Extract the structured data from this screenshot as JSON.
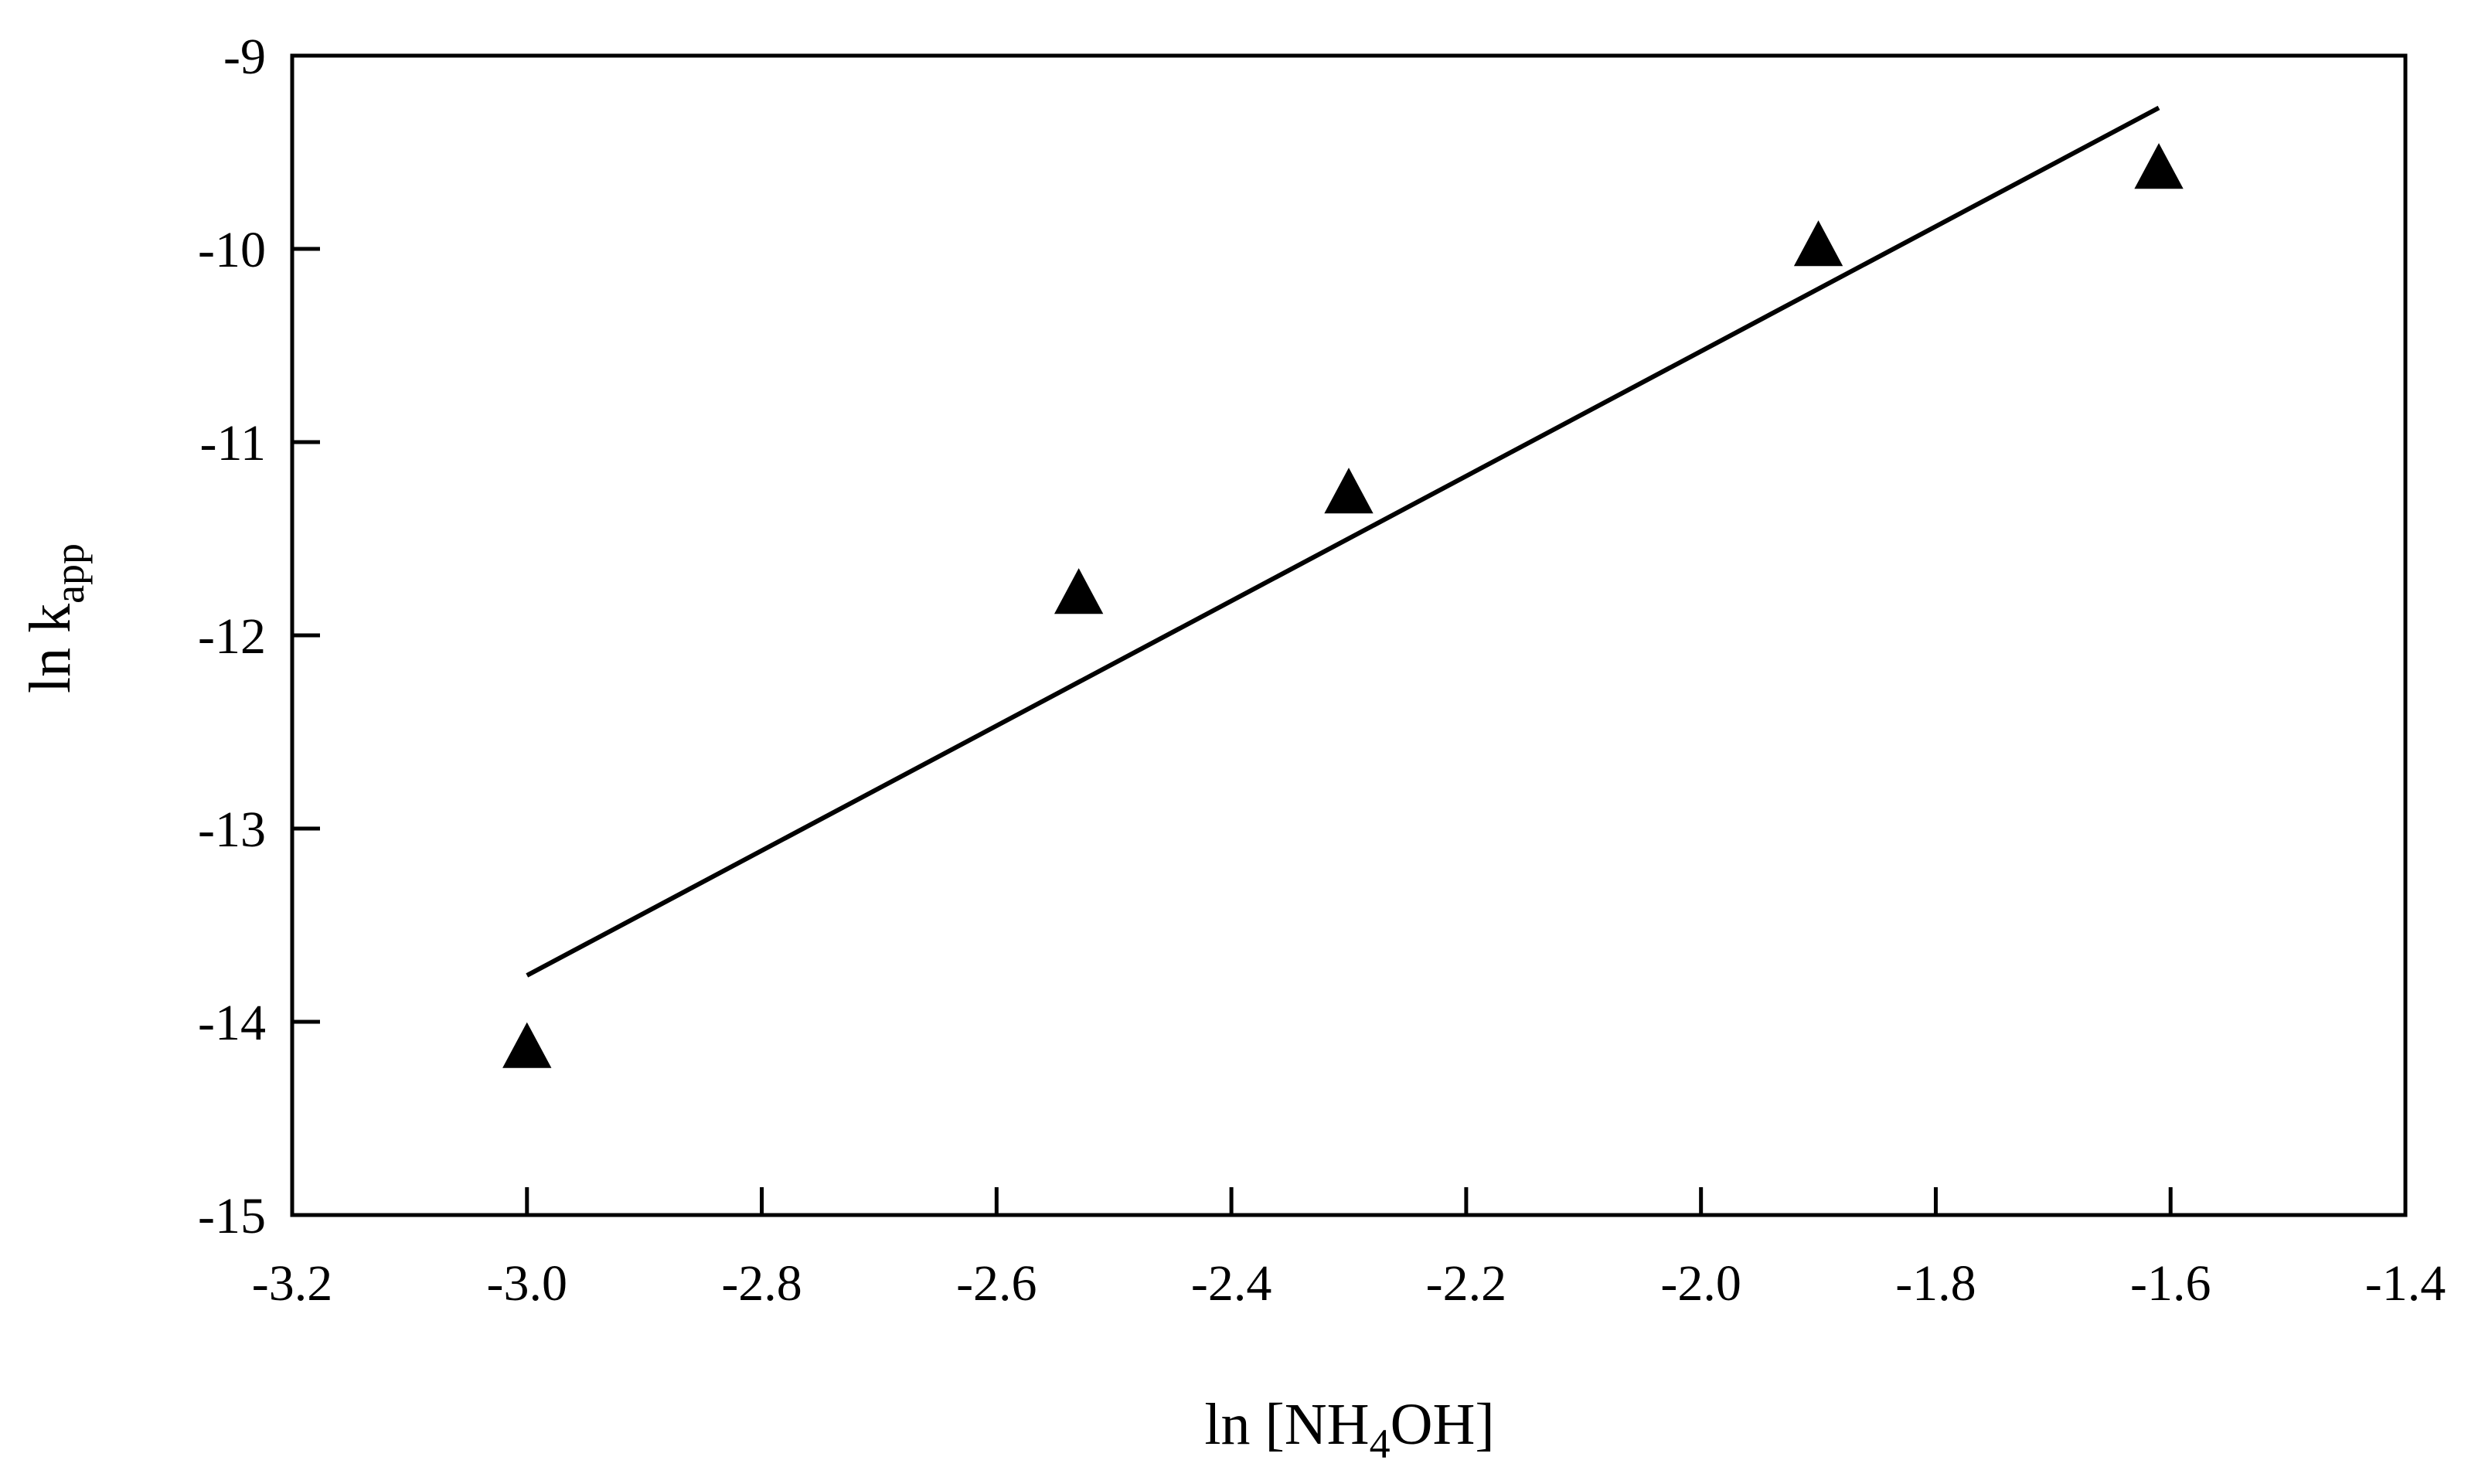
{
  "chart_data": {
    "type": "scatter",
    "title": "",
    "xlabel": {
      "prefix": "ln [NH",
      "subscript": "4",
      "suffix": "OH]"
    },
    "ylabel": {
      "prefix": "ln k",
      "subscript": "app"
    },
    "xlim": [
      -3.2,
      -1.4
    ],
    "ylim": [
      -15,
      -9
    ],
    "x_ticks": [
      -3.2,
      -3.0,
      -2.8,
      -2.6,
      -2.4,
      -2.2,
      -2.0,
      -1.8,
      -1.6,
      -1.4
    ],
    "x_tick_labels": [
      "-3.2",
      "-3.0",
      "-2.8",
      "-2.6",
      "-2.4",
      "-2.2",
      "-2.0",
      "-1.8",
      "-1.6",
      "-1.4"
    ],
    "y_ticks": [
      -15,
      -14,
      -13,
      -12,
      -11,
      -10,
      -9
    ],
    "y_tick_labels": [
      "-15",
      "-14",
      "-13",
      "-12",
      "-11",
      "-10",
      "-9"
    ],
    "grid": false,
    "legend": "none",
    "series": [
      {
        "marker": "triangle",
        "color": "#000000",
        "points": [
          {
            "x": -3.0,
            "y": -14.15
          },
          {
            "x": -2.53,
            "y": -11.8
          },
          {
            "x": -2.3,
            "y": -11.28
          },
          {
            "x": -1.9,
            "y": -10.0
          },
          {
            "x": -1.61,
            "y": -9.6
          }
        ]
      }
    ],
    "fit_line": {
      "color": "#000000",
      "x": [
        -3.0,
        -1.61
      ],
      "y": [
        -13.76,
        -9.27
      ]
    }
  }
}
